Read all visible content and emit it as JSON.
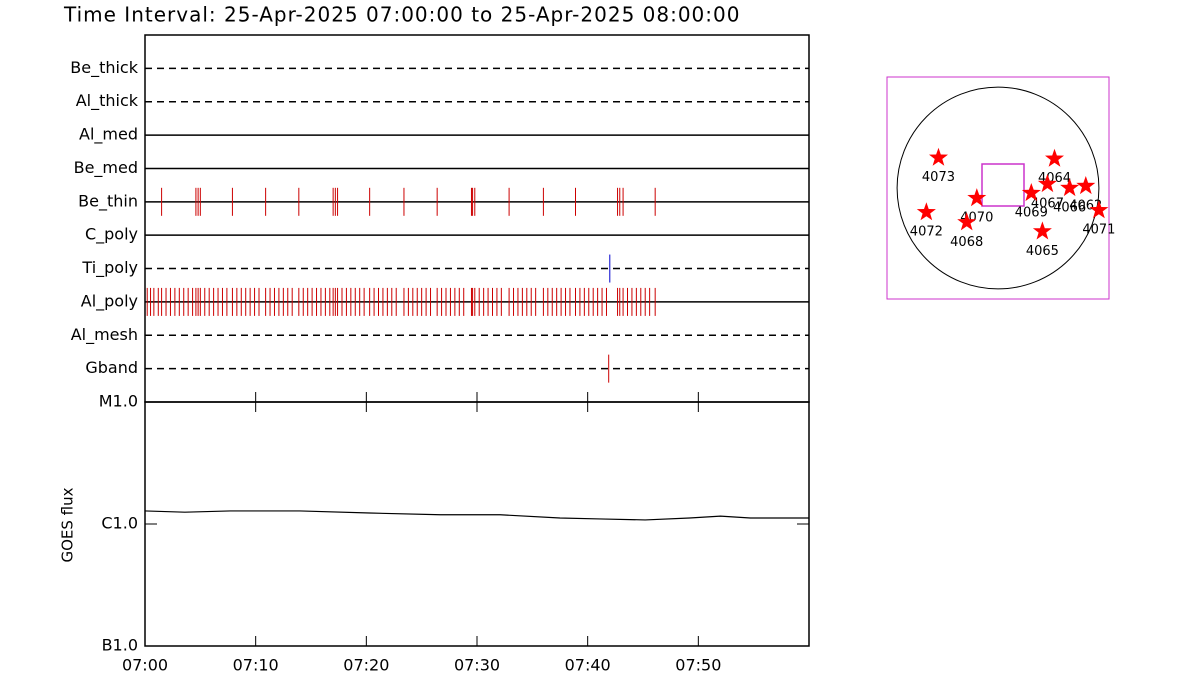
{
  "title": "Time Interval: 25-Apr-2025 07:00:00 to 25-Apr-2025 08:00:00",
  "chart_data": [
    {
      "type": "event",
      "xlim": [
        0,
        60
      ],
      "filters": [
        {
          "name": "Be_thick",
          "line_style": "dashed"
        },
        {
          "name": "Al_thick",
          "line_style": "dashed"
        },
        {
          "name": "Al_med",
          "line_style": "solid"
        },
        {
          "name": "Be_med",
          "line_style": "solid"
        },
        {
          "name": "Be_thin",
          "line_style": "solid",
          "color": "#cc0000",
          "events": [
            1.5,
            4.6,
            4.8,
            5.0,
            7.9,
            10.9,
            13.9,
            17.0,
            17.2,
            17.4,
            20.3,
            23.4,
            26.4,
            29.5,
            29.6,
            29.8,
            32.9,
            36.0,
            38.9,
            42.7,
            42.9,
            43.2,
            46.1
          ]
        },
        {
          "name": "C_poly",
          "line_style": "solid"
        },
        {
          "name": "Ti_poly",
          "line_style": "dashed",
          "color": "#0000cc",
          "events": [
            42.0
          ]
        },
        {
          "name": "Al_poly",
          "line_style": "solid",
          "color": "#cc0000",
          "events": [
            0.2,
            0.5,
            0.8,
            1.2,
            1.5,
            1.9,
            2.3,
            2.7,
            3.1,
            3.5,
            3.9,
            4.3,
            4.6,
            4.8,
            5.0,
            5.4,
            5.8,
            6.2,
            6.6,
            7.0,
            7.4,
            7.9,
            8.3,
            8.7,
            9.1,
            9.5,
            9.9,
            10.3,
            10.9,
            11.3,
            11.7,
            12.1,
            12.5,
            12.9,
            13.3,
            13.9,
            14.3,
            14.7,
            15.1,
            15.5,
            15.9,
            16.3,
            16.7,
            17.0,
            17.2,
            17.4,
            17.8,
            18.2,
            18.6,
            19.0,
            19.4,
            19.8,
            20.3,
            20.7,
            21.1,
            21.5,
            21.9,
            22.3,
            22.7,
            23.4,
            23.8,
            24.2,
            24.6,
            25.0,
            25.4,
            25.8,
            26.4,
            26.8,
            27.2,
            27.6,
            28.0,
            28.4,
            28.8,
            29.5,
            29.6,
            29.8,
            30.2,
            30.6,
            31.0,
            31.4,
            31.8,
            32.2,
            32.9,
            33.3,
            33.7,
            34.1,
            34.5,
            34.9,
            35.3,
            36.0,
            36.4,
            36.8,
            37.2,
            37.6,
            38.0,
            38.4,
            38.9,
            39.3,
            39.7,
            40.1,
            40.5,
            40.9,
            41.3,
            41.7,
            42.7,
            42.9,
            43.2,
            43.6,
            44.0,
            44.4,
            44.8,
            45.2,
            45.6,
            46.1
          ]
        },
        {
          "name": "Al_mesh",
          "line_style": "dashed"
        },
        {
          "name": "Gband",
          "line_style": "dashed",
          "color": "#cc0000",
          "events": [
            41.9
          ]
        }
      ]
    },
    {
      "type": "line",
      "ylabel": "GOES flux",
      "color": "#000000",
      "log_y": true,
      "xlim": [
        0,
        60
      ],
      "xticks": [
        {
          "value": 0,
          "label": "07:00"
        },
        {
          "value": 10,
          "label": "07:10"
        },
        {
          "value": 20,
          "label": "07:20"
        },
        {
          "value": 30,
          "label": "07:30"
        },
        {
          "value": 40,
          "label": "07:40"
        },
        {
          "value": 50,
          "label": "07:50"
        }
      ],
      "ylim": [
        1e-07,
        1e-05
      ],
      "yticks": [
        {
          "value": 1e-07,
          "label": "B1.0"
        },
        {
          "value": 1e-06,
          "label": "C1.0"
        },
        {
          "value": 1e-05,
          "label": "M1.0"
        }
      ],
      "x": [
        0,
        3.6,
        7.7,
        14,
        20.3,
        26.7,
        32.1,
        37.5,
        41.1,
        45.2,
        49.2,
        52,
        54.7,
        60
      ],
      "values": [
        1.28e-06,
        1.25e-06,
        1.28e-06,
        1.28e-06,
        1.23e-06,
        1.19e-06,
        1.19e-06,
        1.12e-06,
        1.1e-06,
        1.08e-06,
        1.12e-06,
        1.16e-06,
        1.12e-06,
        1.12e-06
      ]
    },
    {
      "type": "map",
      "xlim": [
        -1.1,
        1.1
      ],
      "ylim": [
        -1.1,
        1.1
      ],
      "color": "#ff0000",
      "regions": [
        {
          "label": "4073",
          "x": -0.59,
          "y": 0.3
        },
        {
          "label": "4064",
          "x": 0.56,
          "y": 0.29
        },
        {
          "label": "4067",
          "x": 0.49,
          "y": 0.04
        },
        {
          "label": "4069",
          "x": 0.33,
          "y": -0.05
        },
        {
          "label": "4066",
          "x": 0.71,
          "y": 0
        },
        {
          "label": "4062",
          "x": 0.87,
          "y": 0.02
        },
        {
          "label": "4071",
          "x": 1.0,
          "y": -0.22
        },
        {
          "label": "4070",
          "x": -0.21,
          "y": -0.1
        },
        {
          "label": "4068",
          "x": -0.31,
          "y": -0.34
        },
        {
          "label": "4072",
          "x": -0.71,
          "y": -0.24
        },
        {
          "label": "4065",
          "x": 0.44,
          "y": -0.43
        }
      ]
    }
  ]
}
